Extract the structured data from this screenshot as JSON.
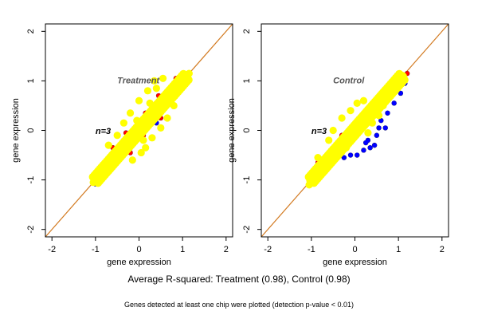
{
  "figure": {
    "summary": "Average R-squared: Treatment (0.98), Control (0.98)",
    "footnote": "Genes detected at least one chip were plotted (detection p-value < 0.01)"
  },
  "chart_data": [
    {
      "type": "scatter",
      "title": "Treatment",
      "annotation": "n=3",
      "xlabel": "gene expression",
      "ylabel": "gene expression",
      "xlim": [
        -2.15,
        2.15
      ],
      "ylim": [
        -2.15,
        2.15
      ],
      "xticks": [
        -2,
        -1,
        0,
        1,
        2
      ],
      "yticks": [
        -2,
        -1,
        0,
        1,
        2
      ],
      "reference_line": {
        "slope": 1,
        "intercept": 0,
        "color": "#d2791f"
      },
      "series": [
        {
          "color": "#ff0000",
          "points": [
            [
              -0.9,
              -0.95
            ],
            [
              -0.85,
              -0.75
            ],
            [
              -0.7,
              -0.55
            ],
            [
              -0.55,
              -0.58
            ],
            [
              -0.4,
              -0.3
            ],
            [
              -0.3,
              -0.05
            ],
            [
              0.15,
              0.35
            ],
            [
              0.3,
              0.45
            ],
            [
              0.45,
              0.7
            ],
            [
              0.6,
              0.55
            ],
            [
              0.75,
              0.9
            ],
            [
              0.85,
              1.05
            ],
            [
              0.9,
              0.85
            ],
            [
              -0.2,
              -0.45
            ],
            [
              0.1,
              -0.1
            ],
            [
              -0.6,
              -0.35
            ],
            [
              0.5,
              0.25
            ]
          ]
        },
        {
          "color": "#0000ff",
          "points": [
            [
              -1.0,
              -1.08
            ],
            [
              -0.95,
              -1.05
            ],
            [
              -0.9,
              -0.9
            ],
            [
              -0.6,
              -0.75
            ],
            [
              -0.4,
              -0.55
            ],
            [
              0.2,
              0.05
            ],
            [
              0.4,
              0.15
            ],
            [
              0.95,
              0.9
            ]
          ]
        },
        {
          "color": "#ffff00",
          "points": [
            [
              -1.05,
              -1.05
            ],
            [
              -0.9,
              -0.8
            ],
            [
              -0.75,
              -0.7
            ],
            [
              -0.6,
              -0.5
            ],
            [
              -0.45,
              -0.4
            ],
            [
              -0.3,
              -0.25
            ],
            [
              -0.15,
              -0.1
            ],
            [
              0,
              0
            ],
            [
              0.15,
              0.2
            ],
            [
              0.3,
              0.3
            ],
            [
              0.45,
              0.4
            ],
            [
              0.6,
              0.65
            ],
            [
              0.75,
              0.75
            ],
            [
              0.9,
              0.95
            ],
            [
              1.05,
              1.05
            ],
            [
              1.15,
              1.15
            ],
            [
              0.55,
              1.05
            ],
            [
              0.4,
              0.85
            ],
            [
              0.35,
              1.0
            ],
            [
              0.2,
              0.8
            ],
            [
              0.0,
              0.6
            ],
            [
              -0.2,
              0.35
            ],
            [
              -0.35,
              0.15
            ],
            [
              -0.15,
              -0.6
            ],
            [
              0.05,
              -0.45
            ],
            [
              0.15,
              -0.35
            ],
            [
              0.3,
              -0.15
            ],
            [
              0.5,
              0.05
            ],
            [
              0.65,
              0.25
            ],
            [
              -0.5,
              -0.1
            ],
            [
              -0.7,
              -0.3
            ],
            [
              0.8,
              0.5
            ],
            [
              -0.05,
              0.2
            ],
            [
              0.1,
              -0.2
            ],
            [
              0.25,
              0.55
            ]
          ]
        }
      ]
    },
    {
      "type": "scatter",
      "title": "Control",
      "annotation": "n=3",
      "xlabel": "gene expression",
      "ylabel": "gene expression",
      "xlim": [
        -2.15,
        2.15
      ],
      "ylim": [
        -2.15,
        2.15
      ],
      "xticks": [
        -2,
        -1,
        0,
        1,
        2
      ],
      "yticks": [
        -2,
        -1,
        0,
        1,
        2
      ],
      "reference_line": {
        "slope": 1,
        "intercept": 0,
        "color": "#d2791f"
      },
      "series": [
        {
          "color": "#ff0000",
          "points": [
            [
              -1.0,
              -1.05
            ],
            [
              -0.85,
              -0.65
            ],
            [
              -0.6,
              -0.45
            ],
            [
              -0.3,
              -0.1
            ],
            [
              0.6,
              0.65
            ],
            [
              0.8,
              0.95
            ],
            [
              1.05,
              1.0
            ],
            [
              1.2,
              1.15
            ],
            [
              0.9,
              0.8
            ]
          ]
        },
        {
          "color": "#0000ff",
          "points": [
            [
              -0.45,
              -0.6
            ],
            [
              -0.25,
              -0.55
            ],
            [
              -0.1,
              -0.5
            ],
            [
              0.05,
              -0.5
            ],
            [
              0.2,
              -0.4
            ],
            [
              0.25,
              -0.25
            ],
            [
              0.35,
              -0.35
            ],
            [
              0.5,
              -0.1
            ],
            [
              0.55,
              0.05
            ],
            [
              0.6,
              0.2
            ],
            [
              0.75,
              0.35
            ],
            [
              0.9,
              0.55
            ],
            [
              1.05,
              0.75
            ],
            [
              1.15,
              0.95
            ],
            [
              -0.8,
              -0.95
            ],
            [
              0.3,
              -0.2
            ],
            [
              0.45,
              -0.3
            ],
            [
              0.7,
              0.05
            ]
          ]
        },
        {
          "color": "#ffff00",
          "points": [
            [
              -1.05,
              -1.1
            ],
            [
              -0.95,
              -0.85
            ],
            [
              -0.85,
              -0.55
            ],
            [
              -0.75,
              -0.7
            ],
            [
              -0.6,
              -0.55
            ],
            [
              -0.45,
              -0.4
            ],
            [
              -0.3,
              -0.3
            ],
            [
              -0.15,
              -0.15
            ],
            [
              0,
              0
            ],
            [
              0.15,
              0.15
            ],
            [
              0.3,
              0.3
            ],
            [
              0.45,
              0.45
            ],
            [
              0.6,
              0.55
            ],
            [
              0.75,
              0.7
            ],
            [
              0.9,
              0.85
            ],
            [
              1.0,
              0.95
            ],
            [
              -0.1,
              0.4
            ],
            [
              0.05,
              0.55
            ],
            [
              0.2,
              0.6
            ],
            [
              -0.3,
              0.25
            ],
            [
              -0.5,
              0.0
            ],
            [
              -0.6,
              -0.2
            ],
            [
              0.4,
              0.15
            ],
            [
              0.3,
              -0.05
            ],
            [
              0.55,
              0.3
            ],
            [
              0.65,
              0.5
            ],
            [
              -0.2,
              -0.35
            ]
          ]
        }
      ]
    }
  ]
}
